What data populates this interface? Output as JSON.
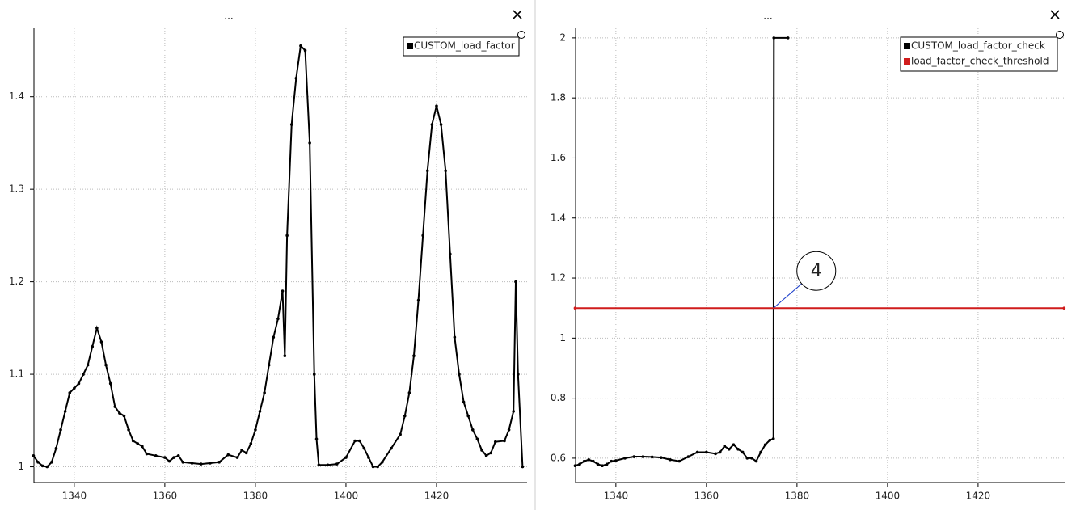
{
  "chart_data": [
    {
      "type": "line",
      "title": "...",
      "xlim": [
        1331.1,
        1440
      ],
      "ylim": [
        0.983,
        1.474
      ],
      "xticks": [
        1340,
        1360,
        1380,
        1400,
        1420
      ],
      "yticks": [
        1,
        1.1,
        1.2,
        1.3,
        1.4
      ],
      "grid": true,
      "legend": "top-right",
      "series": [
        {
          "name": "CUSTOM_load_factor",
          "color": "#000000",
          "x": [
            1331,
            1332,
            1333,
            1334,
            1335,
            1336,
            1337,
            1338,
            1339,
            1340,
            1341,
            1342,
            1343,
            1344,
            1345,
            1346,
            1347,
            1348,
            1349,
            1350,
            1351,
            1352,
            1353,
            1354,
            1355,
            1356,
            1358,
            1360,
            1361,
            1362,
            1363,
            1364,
            1366,
            1368,
            1370,
            1372,
            1374,
            1376,
            1377,
            1378,
            1379,
            1380,
            1381,
            1382,
            1383,
            1384,
            1385,
            1386,
            1386.5,
            1387,
            1388,
            1389,
            1390,
            1391,
            1392,
            1393,
            1393.5,
            1394,
            1396,
            1398,
            1400,
            1402,
            1403,
            1404,
            1405,
            1406,
            1407,
            1408,
            1410,
            1412,
            1413,
            1414,
            1415,
            1416,
            1417,
            1418,
            1419,
            1420,
            1421,
            1422,
            1423,
            1424,
            1425,
            1426,
            1427,
            1428,
            1429,
            1430,
            1431,
            1432,
            1433,
            1435,
            1436,
            1437,
            1437.5,
            1438,
            1439
          ],
          "values": [
            1.012,
            1.005,
            1.001,
            1.0,
            1.005,
            1.02,
            1.04,
            1.06,
            1.08,
            1.085,
            1.09,
            1.1,
            1.11,
            1.13,
            1.15,
            1.135,
            1.11,
            1.09,
            1.065,
            1.058,
            1.055,
            1.04,
            1.028,
            1.025,
            1.022,
            1.014,
            1.012,
            1.01,
            1.006,
            1.01,
            1.012,
            1.005,
            1.004,
            1.003,
            1.004,
            1.005,
            1.013,
            1.01,
            1.018,
            1.015,
            1.025,
            1.04,
            1.06,
            1.08,
            1.11,
            1.14,
            1.16,
            1.19,
            1.12,
            1.25,
            1.37,
            1.42,
            1.455,
            1.45,
            1.35,
            1.1,
            1.03,
            1.002,
            1.002,
            1.003,
            1.01,
            1.028,
            1.028,
            1.02,
            1.01,
            1.0,
            1.0,
            1.005,
            1.02,
            1.035,
            1.055,
            1.08,
            1.12,
            1.18,
            1.25,
            1.32,
            1.37,
            1.39,
            1.37,
            1.32,
            1.23,
            1.14,
            1.1,
            1.07,
            1.055,
            1.04,
            1.03,
            1.018,
            1.012,
            1.015,
            1.027,
            1.028,
            1.04,
            1.06,
            1.2,
            1.1,
            1.0
          ]
        }
      ]
    },
    {
      "type": "line",
      "title": "...",
      "xlim": [
        1331.1,
        1439.3
      ],
      "ylim": [
        0.519,
        2.032
      ],
      "xticks": [
        1340,
        1360,
        1380,
        1400,
        1420
      ],
      "yticks": [
        0.6,
        0.8,
        1,
        1.2,
        1.4,
        1.6,
        1.8,
        2
      ],
      "grid": true,
      "legend": "top-right",
      "annotations": [
        {
          "text": "4",
          "x": 1374.8,
          "y": 1.1
        }
      ],
      "series": [
        {
          "name": "CUSTOM_load_factor_check",
          "color": "#000000",
          "x": [
            1331,
            1332,
            1333,
            1334,
            1335,
            1336,
            1337,
            1338,
            1339,
            1340,
            1342,
            1344,
            1346,
            1348,
            1350,
            1352,
            1354,
            1356,
            1358,
            1360,
            1362,
            1363,
            1364,
            1365,
            1366,
            1367,
            1368,
            1369,
            1370,
            1371,
            1372,
            1373,
            1374,
            1374.8,
            1374.9,
            1378
          ],
          "values": [
            0.575,
            0.58,
            0.59,
            0.595,
            0.59,
            0.58,
            0.575,
            0.58,
            0.59,
            0.592,
            0.6,
            0.605,
            0.605,
            0.604,
            0.602,
            0.595,
            0.59,
            0.605,
            0.62,
            0.62,
            0.615,
            0.62,
            0.64,
            0.63,
            0.645,
            0.63,
            0.62,
            0.6,
            0.6,
            0.59,
            0.62,
            0.645,
            0.66,
            0.665,
            2.0,
            2.0
          ]
        },
        {
          "name": "load_factor_check_threshold",
          "color": "#d01c1c",
          "x": [
            1331,
            1439
          ],
          "values": [
            1.1,
            1.1
          ]
        }
      ]
    }
  ]
}
